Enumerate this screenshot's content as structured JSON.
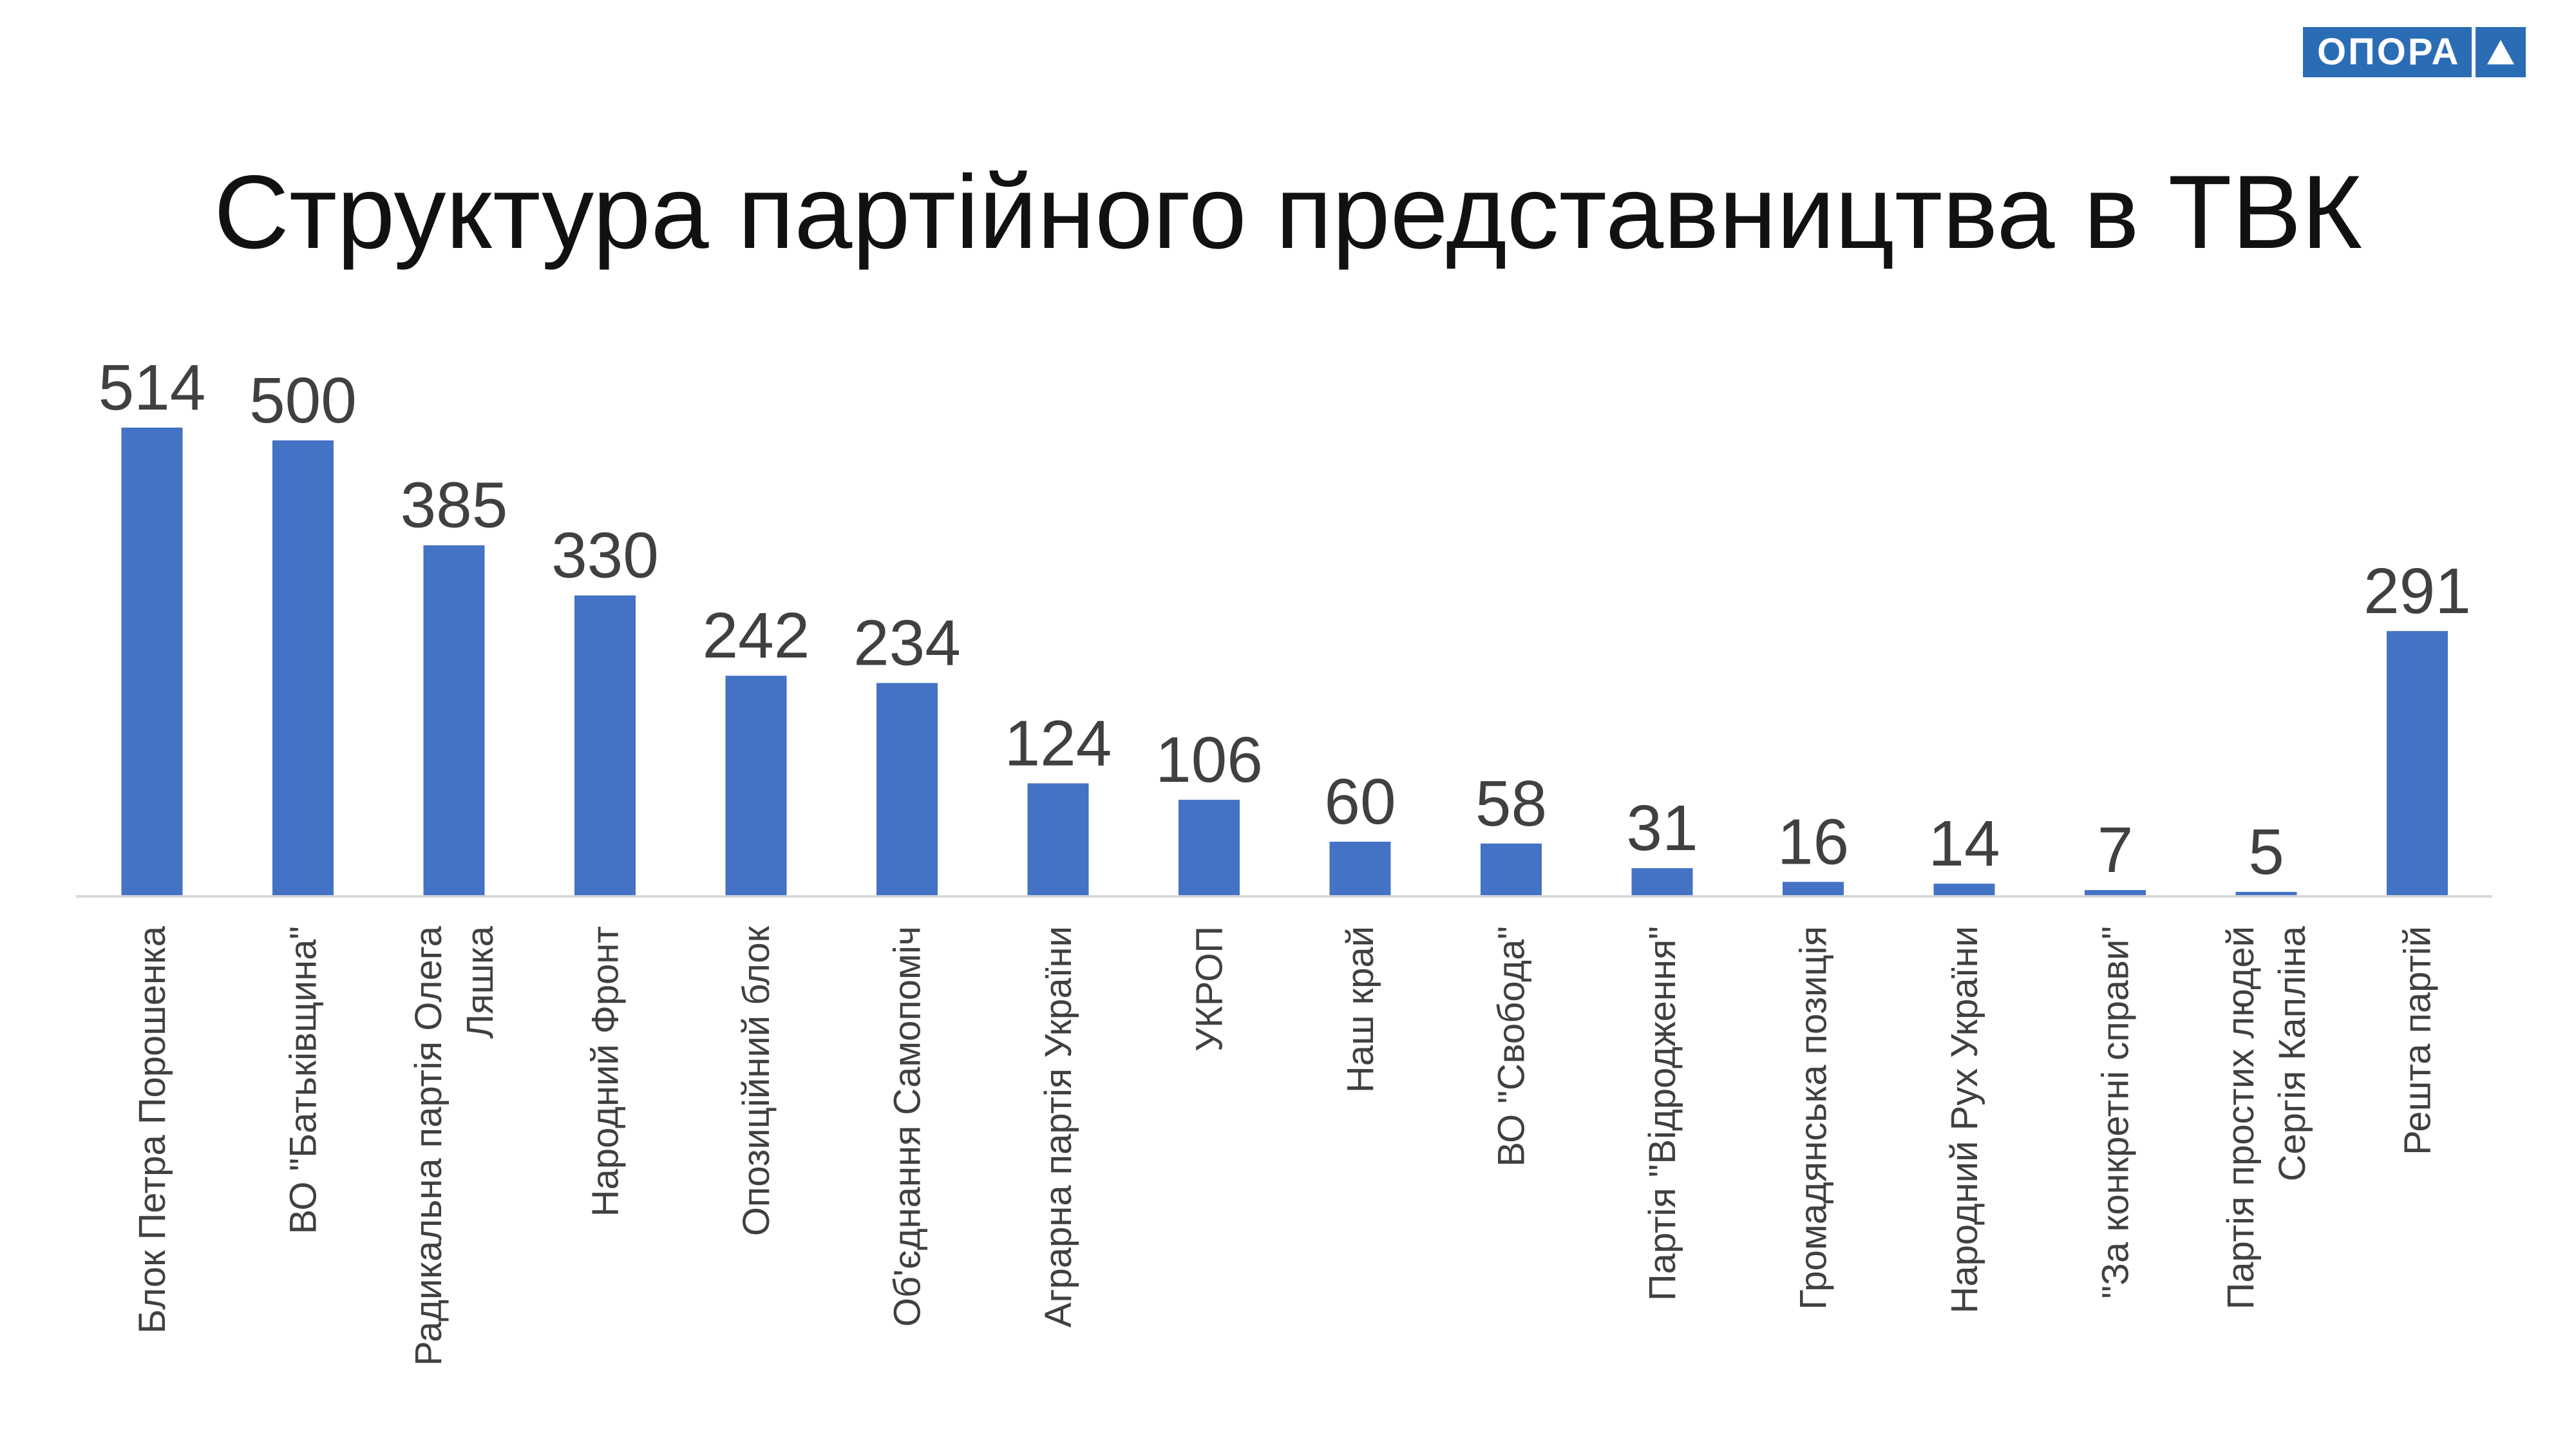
{
  "logo": {
    "text": "ОПОРА",
    "icon": "triangle-icon",
    "color": "#2a6db5"
  },
  "chart_data": {
    "type": "bar",
    "title": "Структура партійного представництва в ТВК",
    "xlabel": "",
    "ylabel": "",
    "categories": [
      "Блок Петра Порошенка",
      "ВО \"Батьківщина\"",
      "Радикальна партія Олега Ляшка",
      "Народний Фронт",
      "Опозиційний блок",
      "Об'єднання Самопоміч",
      "Аграрна партія України",
      "УКРОП",
      "Наш край",
      "ВО \"Свобода\"",
      "Партія \"Відродження\"",
      "Громадянська позиція",
      "Народний Рух України",
      "\"За конкретні справи\"",
      "Партія простих людей Сергія Капліна",
      "Решта партій"
    ],
    "values": [
      514,
      500,
      385,
      330,
      242,
      234,
      124,
      106,
      60,
      58,
      31,
      16,
      14,
      7,
      5,
      291
    ],
    "ylim": [
      0,
      514
    ],
    "grid": false,
    "data_labels": true,
    "bar_color": "#4472c4"
  }
}
